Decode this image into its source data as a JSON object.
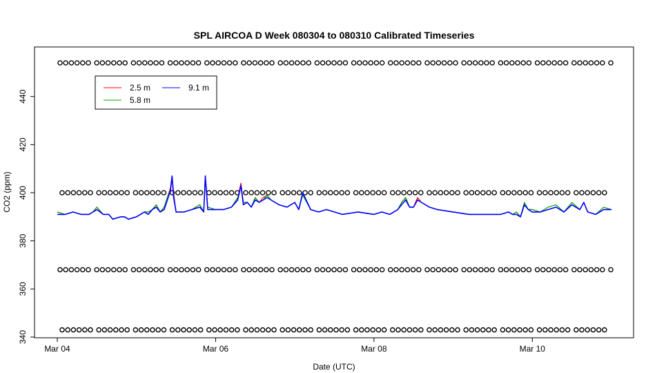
{
  "chart_data": {
    "type": "line",
    "title": "SPL AIRCOA D  Week 080304 to 080310  Calibrated Timeseries",
    "xlabel": "Date (UTC)",
    "ylabel": "CO2 (ppm)",
    "xlim": [
      0,
      7.0
    ],
    "ylim": [
      340,
      456
    ],
    "x_ticks": [
      {
        "value": 0,
        "label": "Mar 04"
      },
      {
        "value": 2,
        "label": "Mar 06"
      },
      {
        "value": 4,
        "label": "Mar 08"
      },
      {
        "value": 6,
        "label": "Mar 10"
      }
    ],
    "y_ticks": [
      340,
      360,
      380,
      400,
      420,
      440
    ],
    "grid": false,
    "legend": {
      "placement": "top-left",
      "entries": [
        {
          "label": "2.5 m",
          "color": "#ff0000"
        },
        {
          "label": "5.8 m",
          "color": "#00a000"
        },
        {
          "label": "9.1 m",
          "color": "#0000ff"
        }
      ]
    },
    "reference_marker_levels": [
      454,
      400,
      368,
      343
    ],
    "series": [
      {
        "name": "2.5 m",
        "color": "#ff0000",
        "x": [
          0.0,
          0.1,
          0.2,
          0.3,
          0.4,
          0.45,
          0.5,
          0.58,
          0.65,
          0.7,
          0.8,
          0.85,
          0.9,
          1.0,
          1.05,
          1.1,
          1.15,
          1.2,
          1.25,
          1.3,
          1.35,
          1.4,
          1.43,
          1.45,
          1.47,
          1.5,
          1.6,
          1.7,
          1.8,
          1.85,
          1.87,
          1.9,
          2.0,
          2.1,
          2.2,
          2.28,
          2.32,
          2.35,
          2.4,
          2.45,
          2.5,
          2.55,
          2.6,
          2.65,
          2.7,
          2.8,
          2.9,
          3.0,
          3.05,
          3.1,
          3.2,
          3.3,
          3.4,
          3.5,
          3.6,
          3.8,
          4.0,
          4.1,
          4.2,
          4.3,
          4.35,
          4.4,
          4.45,
          4.5,
          4.55,
          4.6,
          4.7,
          4.8,
          5.0,
          5.2,
          5.4,
          5.6,
          5.7,
          5.75,
          5.8,
          5.85,
          5.9,
          5.95,
          6.0,
          6.1,
          6.2,
          6.3,
          6.4,
          6.5,
          6.6,
          6.65,
          6.7,
          6.8,
          6.9,
          7.0
        ],
        "y": [
          392,
          391,
          392,
          391,
          391,
          392,
          394,
          391,
          391,
          389,
          390,
          390,
          389,
          390,
          391,
          392,
          392,
          393,
          395,
          392,
          394,
          399,
          402,
          407,
          400,
          392,
          392,
          393,
          395,
          392,
          407,
          394,
          393,
          393,
          394,
          398,
          404,
          396,
          396,
          394,
          398,
          396,
          398,
          399,
          397,
          395,
          394,
          396,
          393,
          400,
          393,
          392,
          393,
          392,
          391,
          392,
          391,
          392,
          391,
          393,
          396,
          398,
          394,
          394,
          398,
          396,
          394,
          393,
          392,
          391,
          391,
          391,
          392,
          391,
          392,
          390,
          395,
          393,
          393,
          392,
          393,
          394,
          392,
          395,
          393,
          396,
          392,
          391,
          393,
          393
        ]
      },
      {
        "name": "5.8 m",
        "color": "#00a000",
        "x": [
          0.0,
          0.1,
          0.2,
          0.3,
          0.4,
          0.45,
          0.5,
          0.58,
          0.65,
          0.7,
          0.8,
          0.85,
          0.9,
          1.0,
          1.05,
          1.1,
          1.15,
          1.2,
          1.25,
          1.3,
          1.35,
          1.4,
          1.43,
          1.45,
          1.47,
          1.5,
          1.6,
          1.7,
          1.8,
          1.85,
          1.87,
          1.9,
          2.0,
          2.1,
          2.2,
          2.28,
          2.32,
          2.35,
          2.4,
          2.45,
          2.5,
          2.55,
          2.6,
          2.65,
          2.7,
          2.8,
          2.9,
          3.0,
          3.05,
          3.1,
          3.2,
          3.3,
          3.4,
          3.5,
          3.6,
          3.8,
          4.0,
          4.1,
          4.2,
          4.3,
          4.35,
          4.4,
          4.45,
          4.5,
          4.55,
          4.6,
          4.7,
          4.8,
          5.0,
          5.2,
          5.4,
          5.6,
          5.7,
          5.75,
          5.8,
          5.85,
          5.9,
          5.95,
          6.0,
          6.1,
          6.2,
          6.3,
          6.4,
          6.5,
          6.6,
          6.65,
          6.7,
          6.8,
          6.9,
          7.0
        ],
        "y": [
          392,
          391,
          392,
          391,
          391,
          392,
          394,
          391,
          391,
          389,
          390,
          390,
          389,
          390,
          391,
          392,
          392,
          393,
          395,
          392,
          394,
          399,
          401,
          406,
          399,
          392,
          392,
          393,
          395,
          392,
          406,
          394,
          393,
          393,
          394,
          398,
          403,
          396,
          396,
          394,
          398,
          396,
          397,
          399,
          397,
          395,
          394,
          396,
          393,
          399,
          393,
          392,
          393,
          392,
          391,
          392,
          391,
          392,
          391,
          393,
          396,
          398,
          394,
          394,
          397,
          396,
          394,
          393,
          392,
          391,
          391,
          391,
          392,
          391,
          392,
          390,
          396,
          393,
          393,
          392,
          394,
          395,
          392,
          396,
          393,
          396,
          392,
          391,
          394,
          393
        ]
      },
      {
        "name": "9.1 m",
        "color": "#0000ff",
        "x": [
          0.0,
          0.1,
          0.2,
          0.3,
          0.4,
          0.45,
          0.5,
          0.58,
          0.65,
          0.7,
          0.8,
          0.85,
          0.9,
          1.0,
          1.05,
          1.1,
          1.15,
          1.2,
          1.25,
          1.3,
          1.35,
          1.4,
          1.43,
          1.45,
          1.47,
          1.5,
          1.6,
          1.7,
          1.8,
          1.85,
          1.87,
          1.9,
          2.0,
          2.1,
          2.2,
          2.28,
          2.32,
          2.35,
          2.4,
          2.45,
          2.5,
          2.55,
          2.6,
          2.65,
          2.7,
          2.8,
          2.9,
          3.0,
          3.05,
          3.1,
          3.2,
          3.3,
          3.4,
          3.5,
          3.6,
          3.8,
          4.0,
          4.1,
          4.2,
          4.3,
          4.35,
          4.4,
          4.45,
          4.5,
          4.55,
          4.6,
          4.7,
          4.8,
          5.0,
          5.2,
          5.4,
          5.6,
          5.7,
          5.75,
          5.8,
          5.85,
          5.9,
          5.95,
          6.0,
          6.1,
          6.2,
          6.3,
          6.4,
          6.5,
          6.6,
          6.65,
          6.7,
          6.8,
          6.9,
          7.0
        ],
        "y": [
          391,
          391,
          392,
          391,
          391,
          392,
          393,
          391,
          391,
          389,
          390,
          390,
          389,
          390,
          391,
          392,
          391,
          393,
          394,
          392,
          393,
          398,
          401,
          407,
          398,
          392,
          392,
          393,
          394,
          392,
          407,
          393,
          393,
          393,
          394,
          397,
          403,
          395,
          396,
          394,
          397,
          396,
          397,
          398,
          397,
          395,
          394,
          396,
          393,
          400,
          393,
          392,
          393,
          392,
          391,
          392,
          391,
          392,
          391,
          393,
          395,
          397,
          394,
          394,
          397,
          396,
          394,
          393,
          392,
          391,
          391,
          391,
          392,
          391,
          391,
          390,
          395,
          393,
          392,
          392,
          393,
          394,
          392,
          395,
          393,
          396,
          392,
          391,
          393,
          393
        ]
      }
    ]
  }
}
